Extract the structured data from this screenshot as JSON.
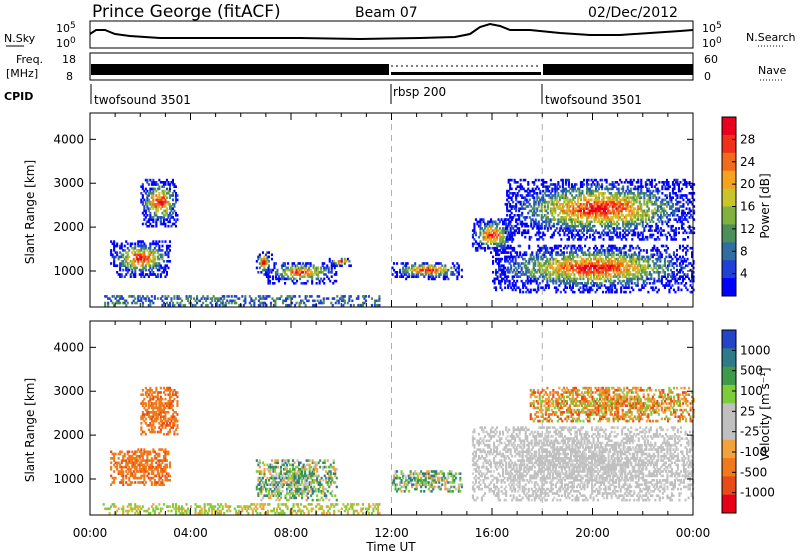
{
  "header": {
    "station": "Prince George (fitACF)",
    "beam": "Beam 07",
    "date": "02/Dec/2012"
  },
  "left_labels": {
    "nsky": "N.Sky",
    "freq_top": "Freq.",
    "freq_unit": "[MHz]",
    "cpid": "CPID"
  },
  "right_labels": {
    "nsearch": "N.Search",
    "nave": "Nave"
  },
  "noise_axis": {
    "top": "10^5",
    "bottom": "10^0"
  },
  "freq_axis": {
    "left_top": "18",
    "left_bottom": "8",
    "right_top": "60",
    "right_bottom": "0"
  },
  "cpid_segments": [
    {
      "label": "twofsound 3501"
    },
    {
      "label": "rbsp 200"
    },
    {
      "label": "twofsound 3501"
    }
  ],
  "power_colorbar": {
    "title": "Power [dB]",
    "ticks": [
      "28",
      "24",
      "20",
      "16",
      "12",
      "8",
      "4"
    ],
    "colors": [
      "#e8001c",
      "#f0301a",
      "#f26a1b",
      "#f5a21e",
      "#c8c42a",
      "#7fb33e",
      "#4c8f5a",
      "#2f6fa0",
      "#2040d8",
      "#0000ff"
    ]
  },
  "velocity_colorbar": {
    "title": "Velocity [m s⁻¹]",
    "ticks": [
      "1000",
      "500",
      "100",
      "25",
      "-25",
      "-100",
      "-500",
      "-1000"
    ],
    "colors": [
      "#2545c8",
      "#2f7a8a",
      "#3f9a4a",
      "#7ccd3a",
      "#c0c0c0",
      "#c0c0c0",
      "#f2a23a",
      "#f07a1a",
      "#e84a18",
      "#e80018"
    ]
  },
  "chart_data": {
    "type": "heatmap",
    "xlabel": "Time UT",
    "ylabel": "Slant Range [km]",
    "x_ticks": [
      "00:00",
      "04:00",
      "08:00",
      "12:00",
      "16:00",
      "20:00",
      "00:00"
    ],
    "y_ticks": [
      "1000",
      "2000",
      "3000",
      "4000"
    ],
    "x_range_hours": [
      0,
      24
    ],
    "y_range_km": [
      180,
      4600
    ],
    "mode_changes_hours": [
      12,
      18
    ],
    "panels": [
      {
        "name": "Power",
        "clusters": [
          {
            "t0": 0.8,
            "t1": 3.2,
            "r0": 850,
            "r1": 1700
          },
          {
            "t0": 2.0,
            "t1": 3.5,
            "r0": 2000,
            "r1": 3100
          },
          {
            "t0": 6.6,
            "t1": 7.2,
            "r0": 900,
            "r1": 1450
          },
          {
            "t0": 7.0,
            "t1": 9.8,
            "r0": 700,
            "r1": 1200
          },
          {
            "t0": 9.5,
            "t1": 10.4,
            "r0": 1100,
            "r1": 1300
          },
          {
            "t0": 12.0,
            "t1": 14.8,
            "r0": 800,
            "r1": 1200
          },
          {
            "t0": 15.2,
            "t1": 16.8,
            "r0": 1400,
            "r1": 2200
          },
          {
            "t0": 16.0,
            "t1": 24.0,
            "r0": 500,
            "r1": 1600
          },
          {
            "t0": 16.5,
            "t1": 24.0,
            "r0": 1700,
            "r1": 3100
          },
          {
            "t0": 0.5,
            "t1": 11.5,
            "r0": 200,
            "r1": 450
          }
        ]
      },
      {
        "name": "Velocity",
        "clusters": [
          {
            "t0": 0.8,
            "t1": 3.2,
            "r0": 850,
            "r1": 1700
          },
          {
            "t0": 2.0,
            "t1": 3.5,
            "r0": 2000,
            "r1": 3100
          },
          {
            "t0": 6.6,
            "t1": 9.8,
            "r0": 500,
            "r1": 1450
          },
          {
            "t0": 12.0,
            "t1": 14.8,
            "r0": 700,
            "r1": 1200
          },
          {
            "t0": 15.2,
            "t1": 24.0,
            "r0": 500,
            "r1": 2200
          },
          {
            "t0": 17.5,
            "t1": 24.0,
            "r0": 2300,
            "r1": 3100
          },
          {
            "t0": 0.5,
            "t1": 11.5,
            "r0": 200,
            "r1": 450
          }
        ]
      }
    ]
  }
}
